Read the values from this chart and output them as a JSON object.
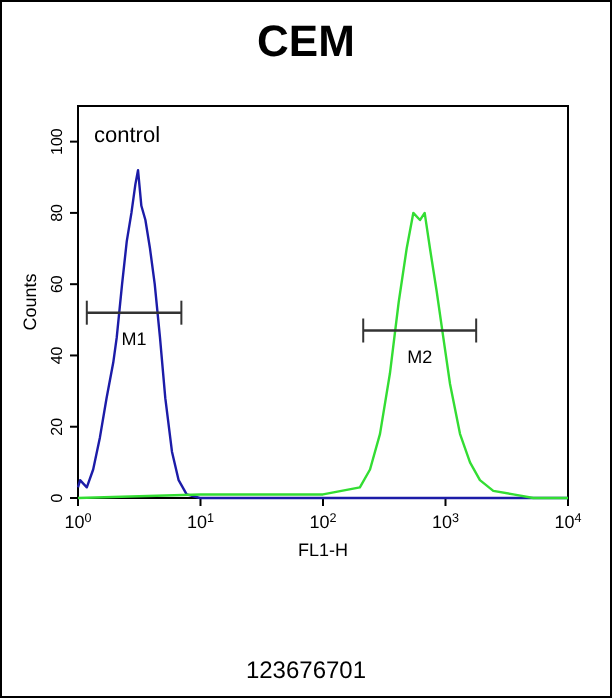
{
  "chart_data": {
    "type": "line",
    "title": "CEM",
    "xlabel": "FL1-H",
    "ylabel": "Counts",
    "log": "x",
    "grid": false,
    "marker": "none",
    "line_style": "solid",
    "xlim": [
      1,
      10000
    ],
    "xticks": [
      {
        "value": 1,
        "label": "10$^{0}$"
      },
      {
        "value": 10,
        "label": "10$^{1}$"
      },
      {
        "value": 100,
        "label": "10$^{2}$"
      },
      {
        "value": 1000,
        "label": "10$^{3}$"
      },
      {
        "value": 10000,
        "label": "10$^{4}$"
      }
    ],
    "ylim": [
      0,
      110
    ],
    "yticks": [
      0,
      20,
      40,
      60,
      80,
      100
    ],
    "series": [
      {
        "color": "#1c1ca8",
        "x": [
          1,
          1.04,
          1.18,
          1.33,
          1.51,
          1.71,
          1.94,
          2.07,
          2.29,
          2.5,
          2.73,
          2.94,
          3.09,
          3.29,
          3.55,
          3.87,
          4.23,
          4.67,
          5.16,
          5.85,
          6.63,
          7.71,
          9.9,
          100,
          1000,
          10000
        ],
        "values": [
          3,
          5,
          3,
          8,
          17,
          28,
          38,
          45,
          60,
          72,
          80,
          88,
          92,
          82,
          78,
          70,
          60,
          45,
          28,
          13,
          5,
          1,
          0,
          0,
          0,
          0
        ]
      },
      {
        "color": "#33dd33",
        "x": [
          1,
          10,
          100,
          200,
          242,
          292,
          352,
          415,
          482,
          546,
          619,
          676,
          747,
          847,
          960,
          1089,
          1313,
          1585,
          1910,
          2455,
          3580,
          5210,
          10000
        ],
        "values": [
          0,
          1,
          1,
          3,
          8,
          18,
          35,
          55,
          70,
          80,
          78,
          80,
          70,
          58,
          45,
          32,
          18,
          10,
          5,
          2,
          1,
          0,
          0
        ]
      },
      {
        "type": "line",
        "color": "#333333",
        "x": [
          1.18,
          6.98
        ],
        "values": [
          52,
          52
        ]
      },
      {
        "type": "line",
        "color": "#333333",
        "x": [
          213,
          1780
        ],
        "values": [
          47,
          47
        ]
      }
    ],
    "annotations": [
      "M1",
      "M2",
      "control",
      "123676701"
    ]
  }
}
